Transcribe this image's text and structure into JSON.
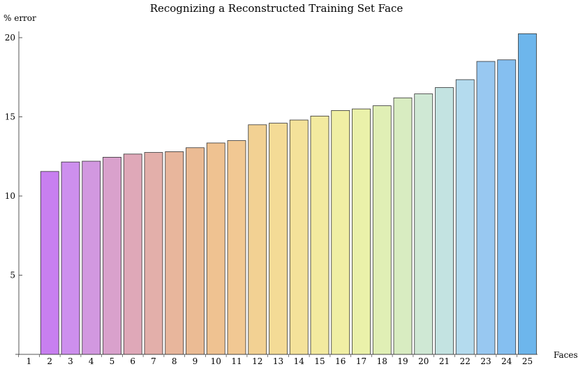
{
  "chart_data": {
    "type": "bar",
    "title": "Recognizing a Reconstructed Training Set Face",
    "xlabel": "Faces",
    "ylabel": "% error",
    "categories": [
      "1",
      "2",
      "3",
      "4",
      "5",
      "6",
      "7",
      "8",
      "9",
      "10",
      "11",
      "12",
      "13",
      "14",
      "15",
      "16",
      "17",
      "18",
      "19",
      "20",
      "21",
      "22",
      "23",
      "24",
      "25"
    ],
    "values": [
      0,
      11.55,
      12.15,
      12.2,
      12.45,
      12.65,
      12.75,
      12.8,
      13.05,
      13.35,
      13.5,
      14.5,
      14.6,
      14.8,
      15.05,
      15.4,
      15.5,
      15.7,
      16.2,
      16.45,
      16.85,
      17.35,
      18.5,
      18.6,
      20.25
    ],
    "yticks": [
      5,
      10,
      15,
      20
    ],
    "ylim": [
      0,
      21
    ],
    "grid": false,
    "colors": [
      "#c87ff0",
      "#c87ff0",
      "#cd8fee",
      "#d298e0",
      "#d9a1cc",
      "#dfa8b8",
      "#e3afaa",
      "#e8b69c",
      "#ebbb94",
      "#efc291",
      "#f1c893",
      "#f2d193",
      "#f4db96",
      "#f4e29a",
      "#f3ea9f",
      "#f0efa4",
      "#eaf1aa",
      "#e0efb5",
      "#d8ecc1",
      "#cfe8d4",
      "#c3e3e1",
      "#b4dbee",
      "#98c8f1",
      "#85bff0",
      "#6db6ec"
    ]
  }
}
